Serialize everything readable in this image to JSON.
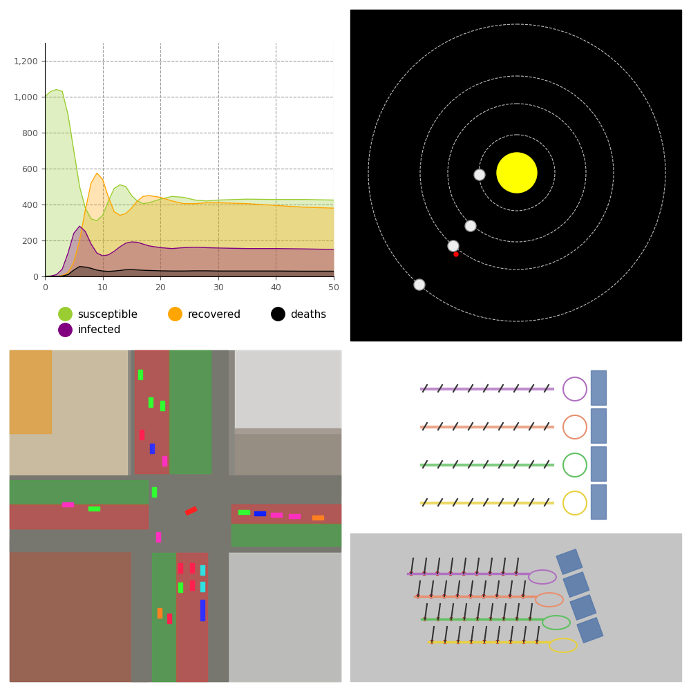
{
  "chart_data": {
    "type": "area",
    "x": [
      0,
      1,
      2,
      3,
      4,
      5,
      6,
      7,
      8,
      9,
      10,
      11,
      12,
      13,
      14,
      15,
      16,
      17,
      18,
      20,
      22,
      24,
      26,
      28,
      30,
      35,
      40,
      45,
      50
    ],
    "series": [
      {
        "name": "susceptible",
        "color": "#9acd32",
        "values": [
          1000,
          1030,
          1040,
          1030,
          900,
          700,
          500,
          380,
          320,
          310,
          340,
          420,
          490,
          510,
          500,
          450,
          420,
          405,
          410,
          430,
          445,
          440,
          425,
          420,
          425,
          430,
          428,
          428,
          425
        ]
      },
      {
        "name": "infected",
        "color": "#800080",
        "values": [
          0,
          2,
          10,
          40,
          130,
          240,
          280,
          250,
          180,
          130,
          115,
          120,
          140,
          165,
          185,
          192,
          190,
          180,
          170,
          160,
          155,
          160,
          162,
          160,
          158,
          155,
          155,
          153,
          150
        ]
      },
      {
        "name": "recovered",
        "color": "#ffa500",
        "values": [
          0,
          0,
          0,
          5,
          20,
          80,
          200,
          370,
          520,
          575,
          540,
          440,
          360,
          340,
          350,
          380,
          420,
          445,
          450,
          440,
          420,
          405,
          405,
          410,
          410,
          405,
          395,
          385,
          380
        ]
      },
      {
        "name": "deaths",
        "color": "#000000",
        "values": [
          0,
          0,
          0,
          2,
          10,
          35,
          55,
          52,
          45,
          35,
          30,
          28,
          30,
          33,
          37,
          38,
          36,
          34,
          33,
          31,
          30,
          30,
          31,
          31,
          30,
          30,
          30,
          29,
          29
        ]
      }
    ],
    "xlim": [
      0,
      50
    ],
    "xticks": [
      0,
      10,
      20,
      30,
      40,
      50
    ],
    "ylim": [
      0,
      1300
    ],
    "yticks": [
      0,
      200,
      400,
      600,
      800,
      {
        "value": 1000,
        "label": "1,000"
      },
      {
        "value": 1200,
        "label": "1,200"
      }
    ],
    "grid": true,
    "legend": "bottom"
  }
}
